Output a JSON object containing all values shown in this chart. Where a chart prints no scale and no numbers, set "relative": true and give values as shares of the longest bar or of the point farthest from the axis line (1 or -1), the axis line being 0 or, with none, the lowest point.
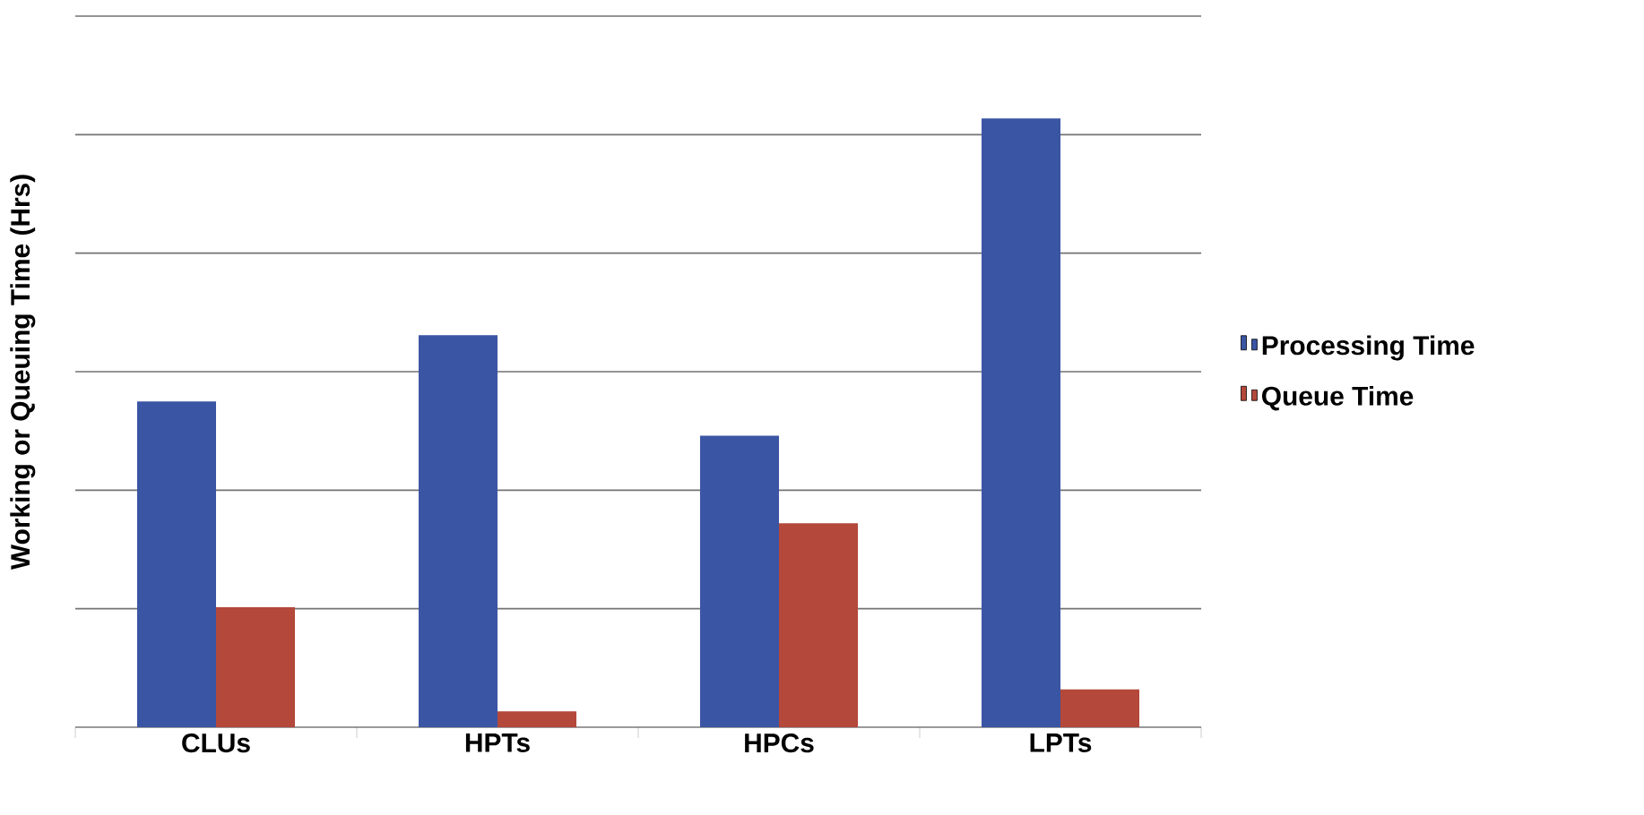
{
  "chart_data": {
    "type": "bar",
    "ylabel": "Working or Queuing Time (Hrs)",
    "relative": true,
    "categories": [
      "CLUs",
      "HPTs",
      "HPCs",
      "LPTs"
    ],
    "series": [
      {
        "name": "Processing Time",
        "color": "#3a55a4",
        "values": [
          0.535,
          0.644,
          0.479,
          1
        ]
      },
      {
        "name": "Queue Time",
        "color": "#b4483a",
        "values": [
          0.197,
          0.026,
          0.335,
          0.062
        ]
      }
    ],
    "grid": "y",
    "legend": "right"
  }
}
